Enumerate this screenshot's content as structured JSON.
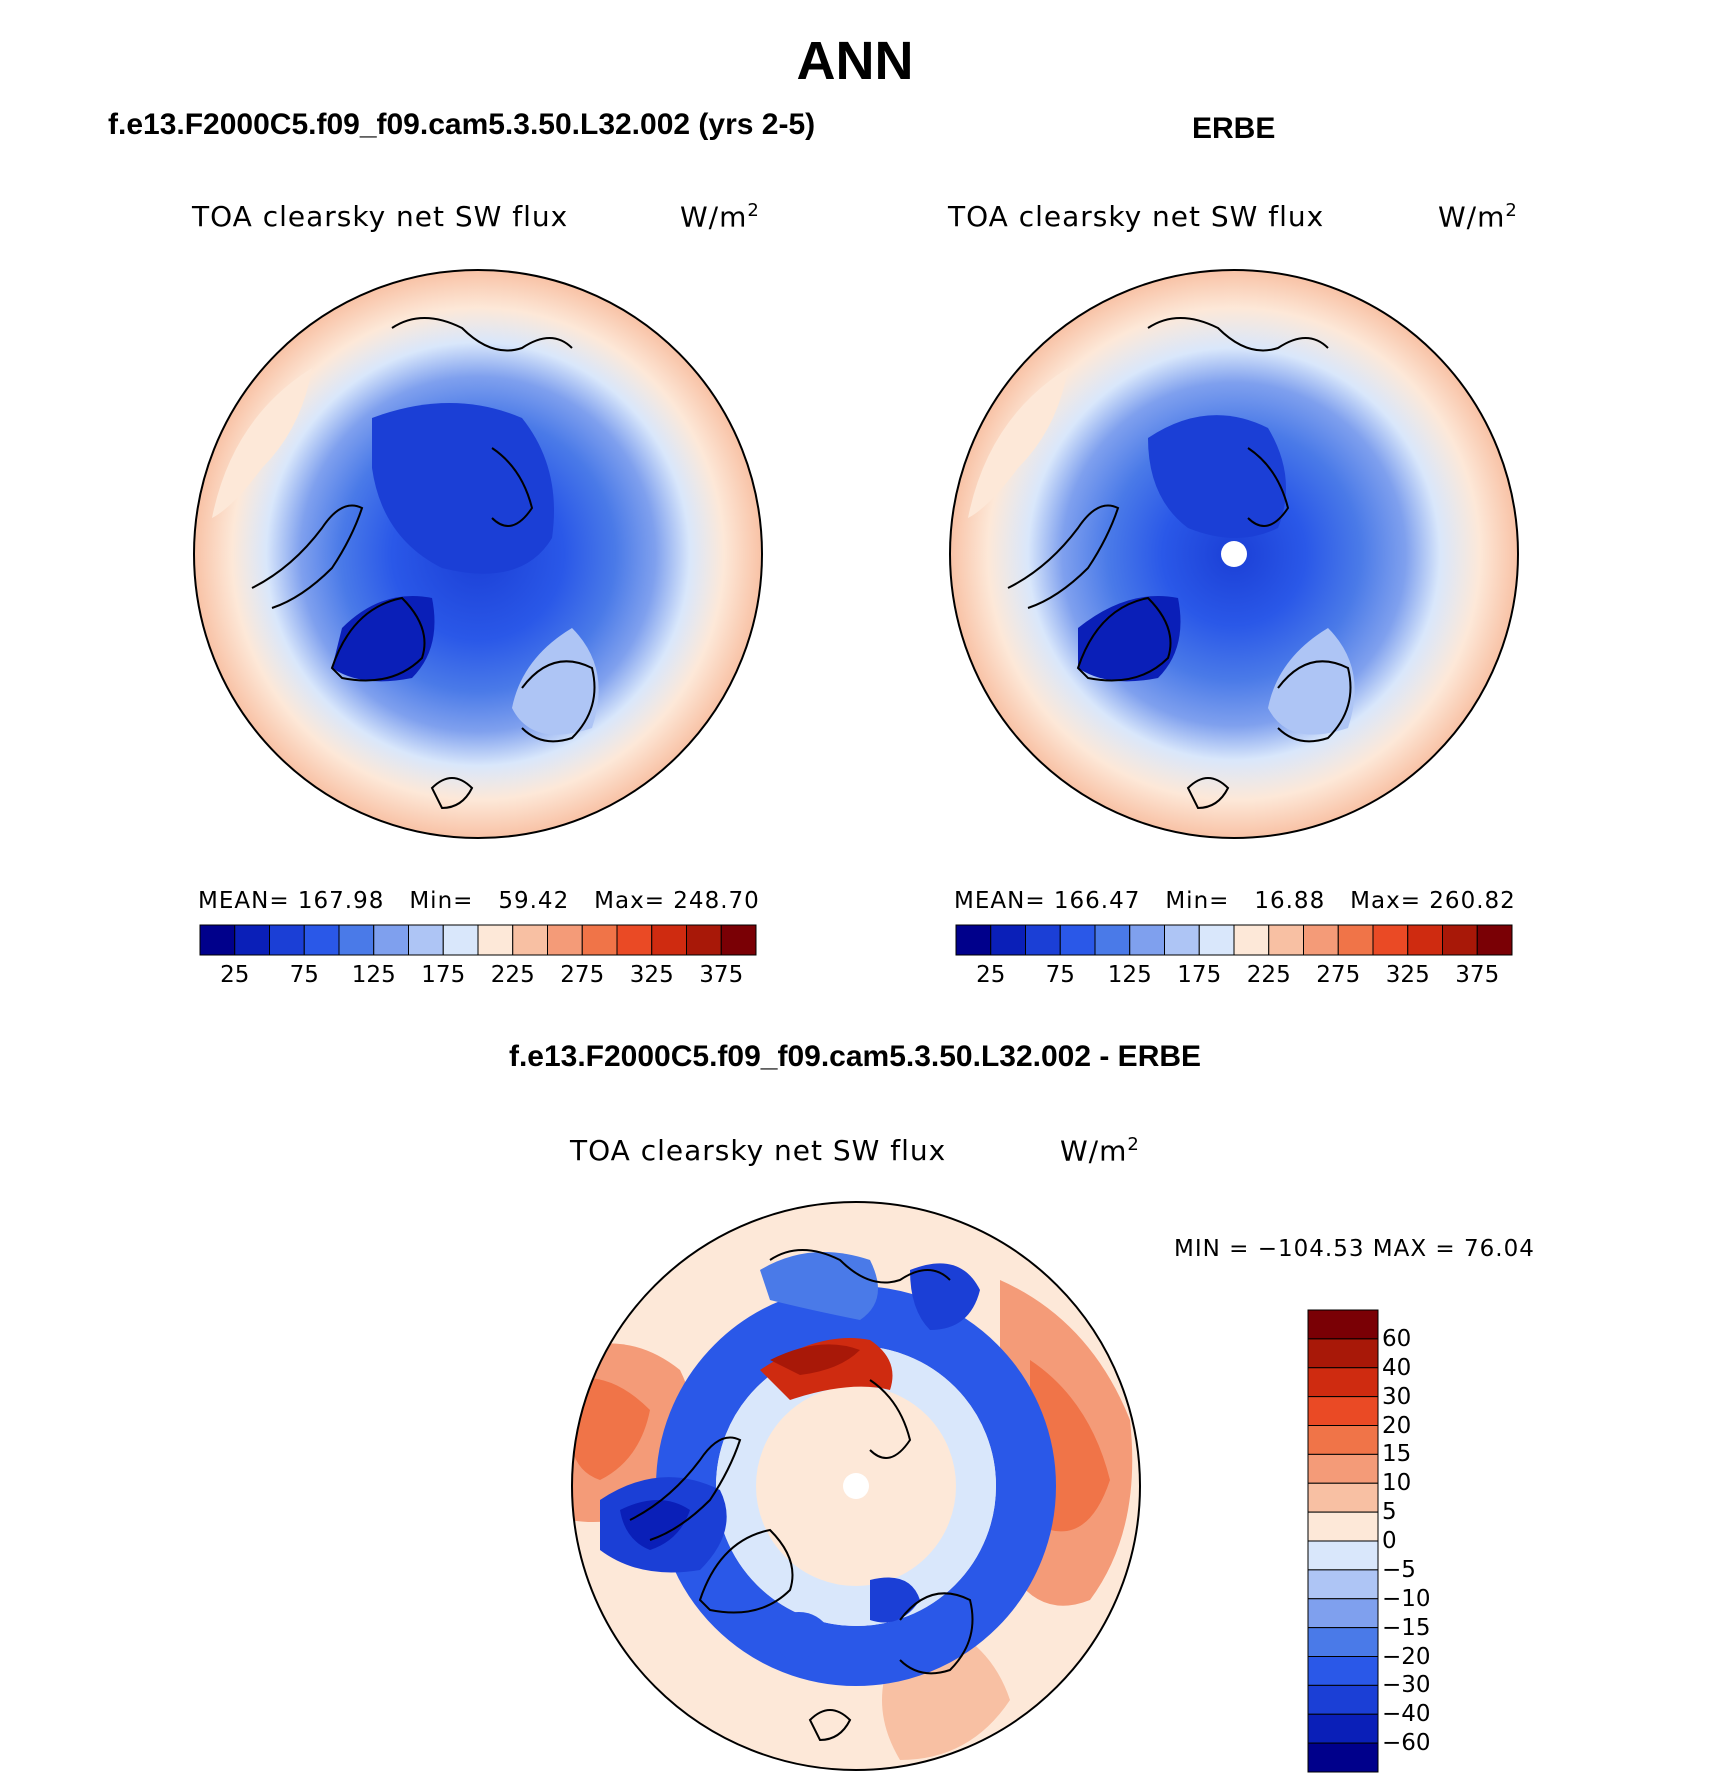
{
  "main_title": "ANN",
  "panels": [
    {
      "title": "f.e13.F2000C5.f09_f09.cam5.3.50.L32.002 (yrs 2-5)",
      "var_label": "TOA clearsky net SW flux",
      "units": "W/m",
      "units_exp": "2",
      "stats": {
        "mean_label": "MEAN=",
        "mean": "167.98",
        "min_label": "Min=",
        "min": "59.42",
        "max_label": "Max=",
        "max": "248.70"
      }
    },
    {
      "title": "ERBE",
      "var_label": "TOA clearsky net SW flux",
      "units": "W/m",
      "units_exp": "2",
      "stats": {
        "mean_label": "MEAN=",
        "mean": "166.47",
        "min_label": "Min=",
        "min": "16.88",
        "max_label": "Max=",
        "max": "260.82"
      }
    }
  ],
  "abs_colorbar": {
    "colors": [
      "#00008b",
      "#0a1fb8",
      "#1b3fd6",
      "#2a58e8",
      "#4a7ae8",
      "#7fa0ee",
      "#aec5f5",
      "#d9e7fb",
      "#fde8d8",
      "#f8c0a3",
      "#f49b78",
      "#f07448",
      "#ea4a25",
      "#cf2b10",
      "#a81808",
      "#7a0005"
    ],
    "tick_labels": [
      "25",
      "75",
      "125",
      "175",
      "225",
      "275",
      "325",
      "375"
    ]
  },
  "diff_panel": {
    "title": "f.e13.F2000C5.f09_f09.cam5.3.50.L32.002 - ERBE",
    "var_label": "TOA clearsky net SW flux",
    "units": "W/m",
    "units_exp": "2",
    "minmax": "MIN = −104.53 MAX =  76.04"
  },
  "diff_colorbar": {
    "colors": [
      "#7a0005",
      "#a81808",
      "#cf2b10",
      "#ea4a25",
      "#f07448",
      "#f49b78",
      "#f8c0a3",
      "#fde8d8",
      "#d9e7fb",
      "#aec5f5",
      "#7fa0ee",
      "#4a7ae8",
      "#2a58e8",
      "#1b3fd6",
      "#0a1fb8",
      "#00008b"
    ],
    "tick_labels": [
      "60",
      "40",
      "30",
      "20",
      "15",
      "10",
      "5",
      "0",
      "−5",
      "−10",
      "−15",
      "−20",
      "−30",
      "−40",
      "−60"
    ]
  }
}
